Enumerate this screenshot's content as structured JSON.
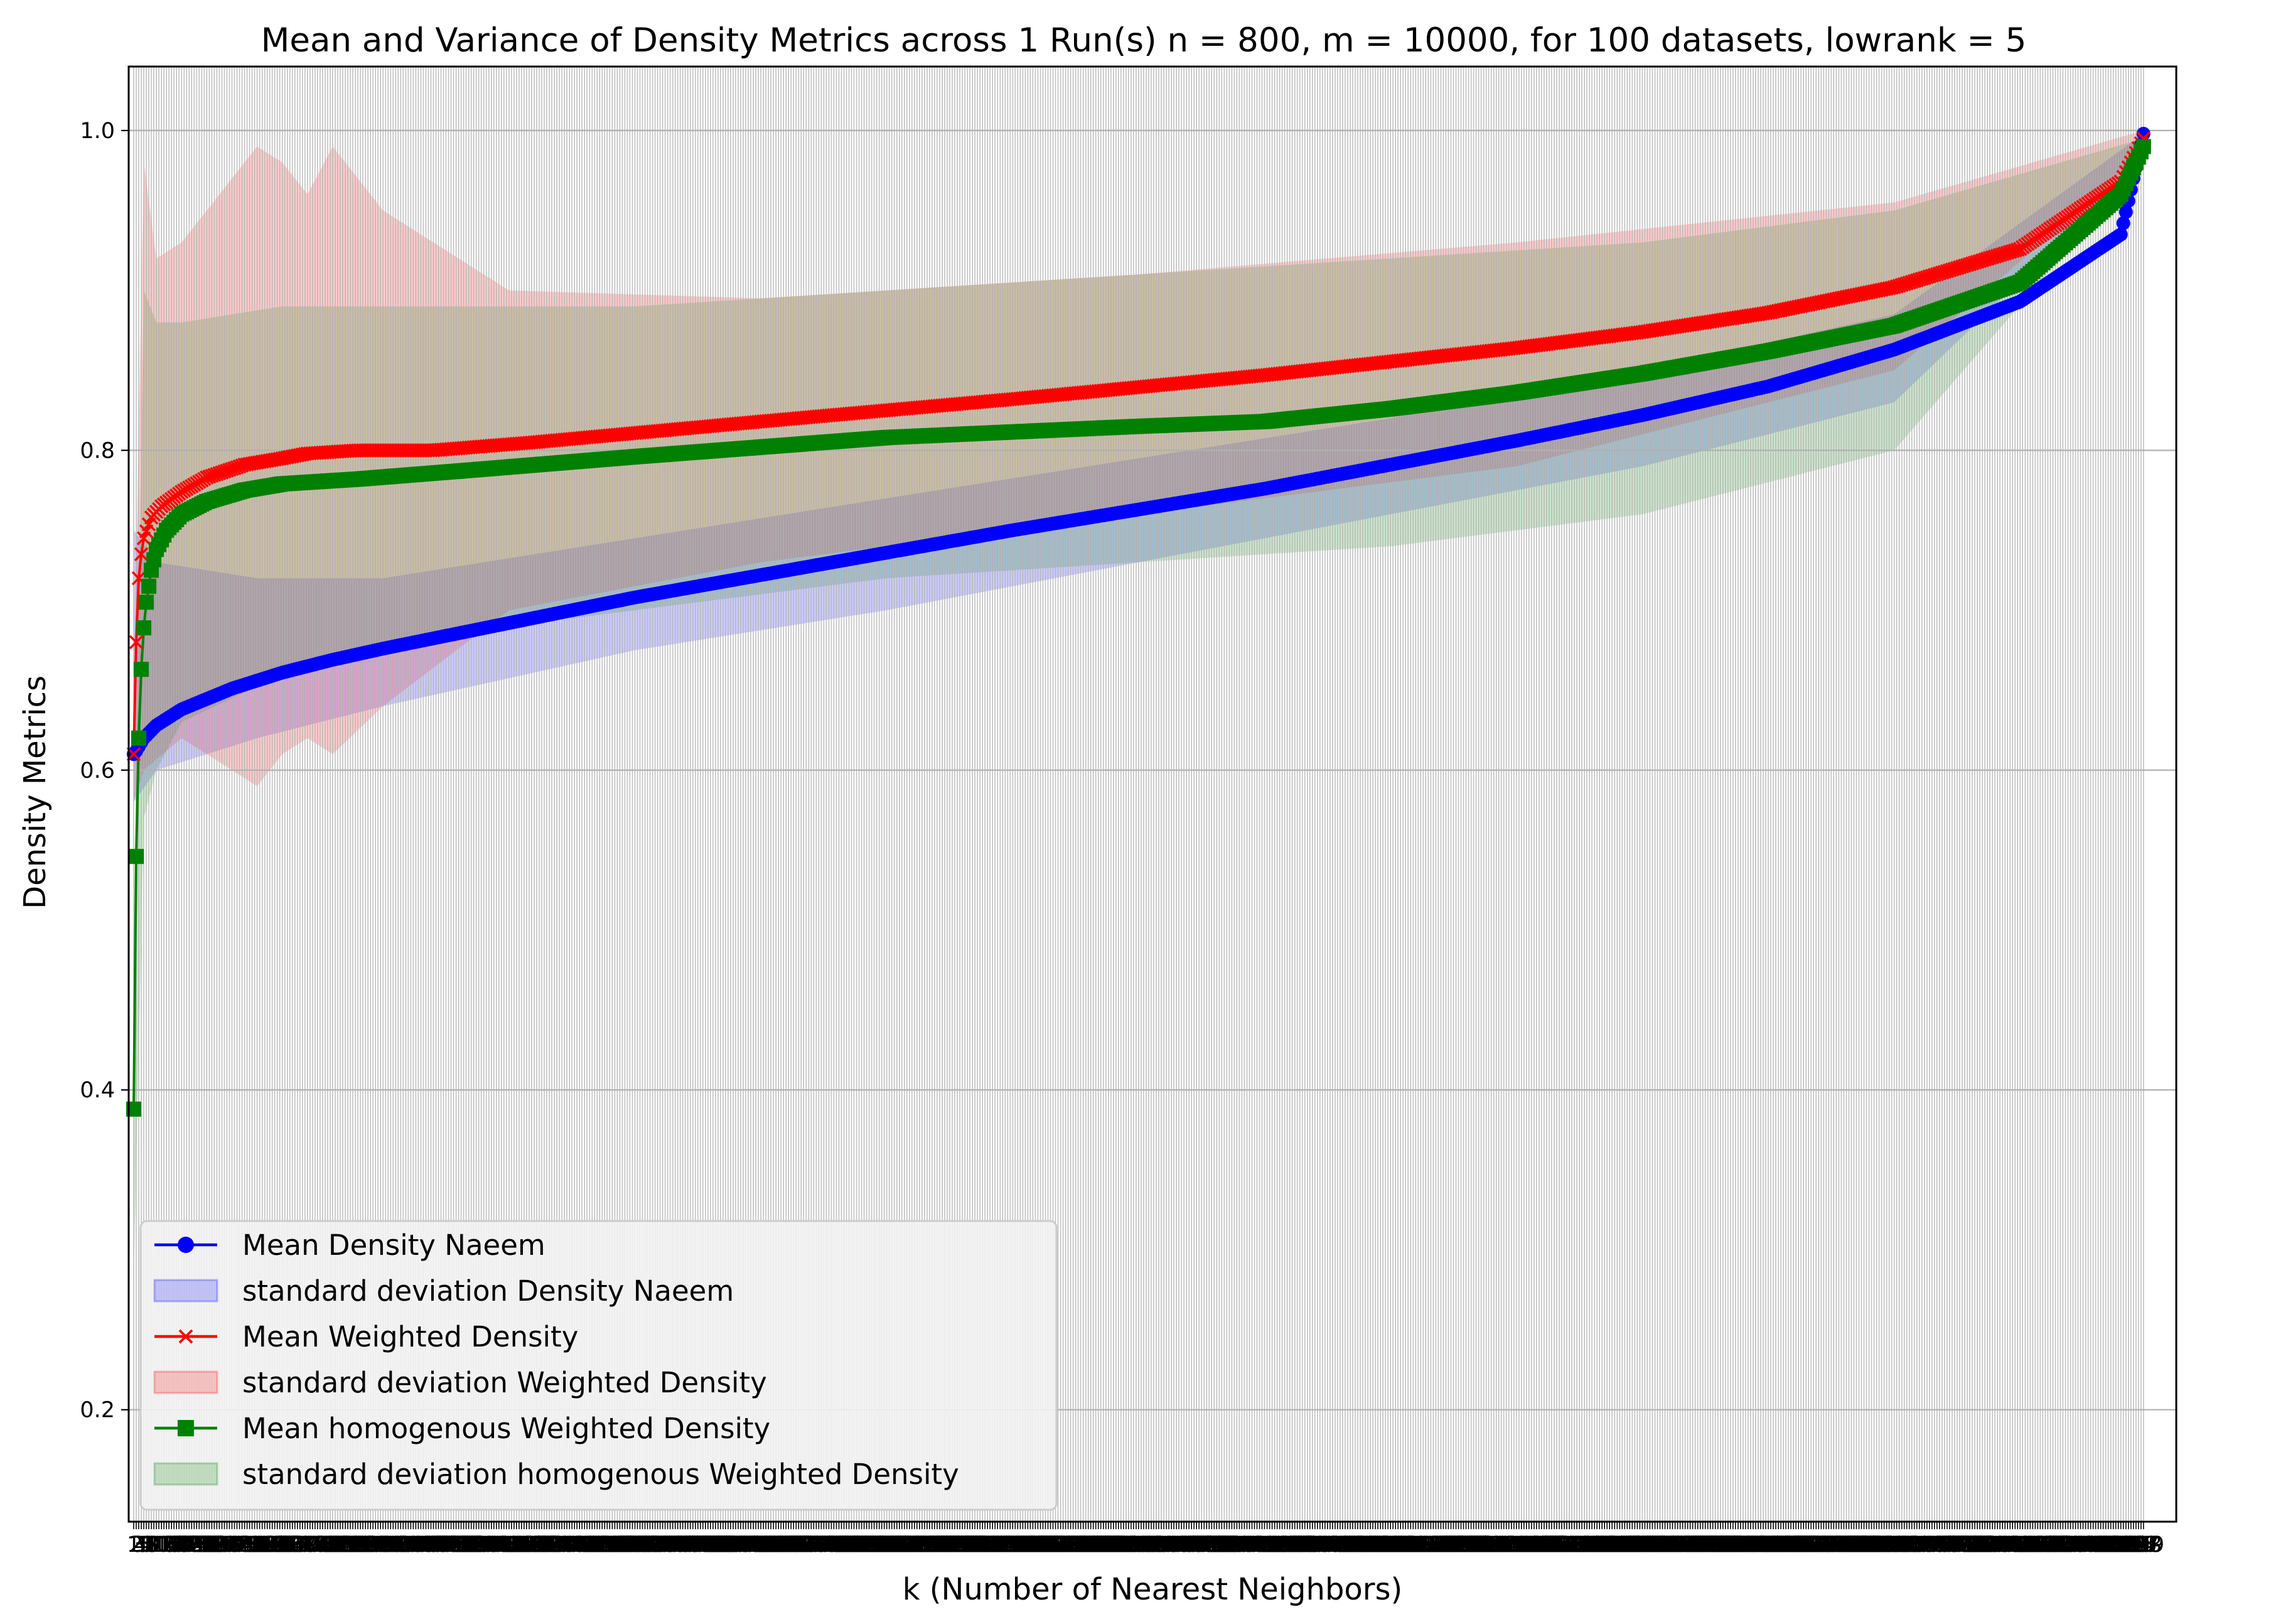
{
  "chart_data": {
    "type": "line",
    "title": "Mean and Variance of Density Metrics across 1 Run(s) n  = 800, m  = 10000, for 100 datasets, lowrank = 5",
    "xlabel": "k (Number of Nearest Neighbors)",
    "ylabel": "Density Metrics",
    "xlim": [
      -1,
      812
    ],
    "ylim": [
      0.13,
      1.04
    ],
    "x_range": [
      1,
      799
    ],
    "yticks": [
      "0.2",
      "0.4",
      "0.6",
      "0.8",
      "1.0"
    ],
    "grid": "horizontal",
    "legend_position": "lower-left",
    "series": [
      {
        "name": "Mean Density Naeem",
        "color": "#0000ff",
        "marker": "circle",
        "points": [
          [
            1,
            0.61
          ],
          [
            2,
            0.612
          ],
          [
            5,
            0.62
          ],
          [
            10,
            0.628
          ],
          [
            20,
            0.638
          ],
          [
            40,
            0.651
          ],
          [
            60,
            0.661
          ],
          [
            80,
            0.669
          ],
          [
            100,
            0.676
          ],
          [
            150,
            0.692
          ],
          [
            200,
            0.708
          ],
          [
            250,
            0.722
          ],
          [
            300,
            0.736
          ],
          [
            350,
            0.75
          ],
          [
            400,
            0.763
          ],
          [
            450,
            0.776
          ],
          [
            500,
            0.791
          ],
          [
            550,
            0.806
          ],
          [
            600,
            0.822
          ],
          [
            650,
            0.84
          ],
          [
            700,
            0.863
          ],
          [
            750,
            0.893
          ],
          [
            790,
            0.935
          ],
          [
            799,
            0.998
          ]
        ]
      },
      {
        "name": "Mean Weighted Density",
        "color": "#ff0000",
        "marker": "x",
        "points": [
          [
            1,
            0.61
          ],
          [
            2,
            0.68
          ],
          [
            3,
            0.72
          ],
          [
            4,
            0.735
          ],
          [
            5,
            0.745
          ],
          [
            8,
            0.758
          ],
          [
            12,
            0.765
          ],
          [
            20,
            0.774
          ],
          [
            30,
            0.783
          ],
          [
            45,
            0.791
          ],
          [
            60,
            0.795
          ],
          [
            70,
            0.798
          ],
          [
            90,
            0.8
          ],
          [
            120,
            0.8
          ],
          [
            160,
            0.805
          ],
          [
            250,
            0.818
          ],
          [
            350,
            0.832
          ],
          [
            450,
            0.847
          ],
          [
            550,
            0.864
          ],
          [
            600,
            0.874
          ],
          [
            650,
            0.886
          ],
          [
            700,
            0.902
          ],
          [
            750,
            0.926
          ],
          [
            790,
            0.968
          ],
          [
            799,
            0.995
          ]
        ]
      },
      {
        "name": "Mean homogenous Weighted Density",
        "color": "#008000",
        "marker": "square",
        "points": [
          [
            1,
            0.388
          ],
          [
            2,
            0.546
          ],
          [
            3,
            0.62
          ],
          [
            4,
            0.663
          ],
          [
            5,
            0.689
          ],
          [
            6,
            0.705
          ],
          [
            8,
            0.725
          ],
          [
            10,
            0.738
          ],
          [
            14,
            0.75
          ],
          [
            20,
            0.76
          ],
          [
            30,
            0.768
          ],
          [
            45,
            0.775
          ],
          [
            60,
            0.779
          ],
          [
            90,
            0.782
          ],
          [
            130,
            0.787
          ],
          [
            200,
            0.796
          ],
          [
            300,
            0.808
          ],
          [
            400,
            0.815
          ],
          [
            450,
            0.818
          ],
          [
            500,
            0.826
          ],
          [
            550,
            0.836
          ],
          [
            600,
            0.848
          ],
          [
            650,
            0.862
          ],
          [
            700,
            0.878
          ],
          [
            750,
            0.905
          ],
          [
            790,
            0.96
          ],
          [
            799,
            0.99
          ]
        ]
      }
    ],
    "bands": [
      {
        "name": "standard deviation Density Naeem",
        "color": "#0000ff",
        "upper": [
          [
            1,
            0.75
          ],
          [
            10,
            0.73
          ],
          [
            50,
            0.72
          ],
          [
            100,
            0.72
          ],
          [
            200,
            0.745
          ],
          [
            300,
            0.77
          ],
          [
            400,
            0.795
          ],
          [
            500,
            0.82
          ],
          [
            600,
            0.85
          ],
          [
            700,
            0.885
          ],
          [
            799,
            0.998
          ]
        ],
        "lower": [
          [
            1,
            0.58
          ],
          [
            10,
            0.6
          ],
          [
            50,
            0.62
          ],
          [
            100,
            0.64
          ],
          [
            200,
            0.675
          ],
          [
            300,
            0.7
          ],
          [
            400,
            0.73
          ],
          [
            500,
            0.76
          ],
          [
            600,
            0.79
          ],
          [
            700,
            0.83
          ],
          [
            799,
            0.98
          ]
        ]
      },
      {
        "name": "standard deviation Weighted Density",
        "color": "#ff0000",
        "upper": [
          [
            1,
            0.65
          ],
          [
            5,
            0.98
          ],
          [
            10,
            0.92
          ],
          [
            20,
            0.93
          ],
          [
            40,
            0.97
          ],
          [
            50,
            0.99
          ],
          [
            60,
            0.98
          ],
          [
            70,
            0.96
          ],
          [
            80,
            0.99
          ],
          [
            100,
            0.95
          ],
          [
            150,
            0.9
          ],
          [
            250,
            0.895
          ],
          [
            400,
            0.91
          ],
          [
            550,
            0.93
          ],
          [
            700,
            0.955
          ],
          [
            799,
            1.0
          ]
        ],
        "lower": [
          [
            1,
            0.58
          ],
          [
            5,
            0.6
          ],
          [
            20,
            0.62
          ],
          [
            40,
            0.6
          ],
          [
            50,
            0.59
          ],
          [
            60,
            0.61
          ],
          [
            70,
            0.62
          ],
          [
            80,
            0.61
          ],
          [
            100,
            0.64
          ],
          [
            150,
            0.7
          ],
          [
            250,
            0.73
          ],
          [
            400,
            0.76
          ],
          [
            550,
            0.79
          ],
          [
            700,
            0.85
          ],
          [
            799,
            0.985
          ]
        ]
      },
      {
        "name": "standard deviation homogenous Weighted Density",
        "color": "#008000",
        "upper": [
          [
            1,
            0.5
          ],
          [
            5,
            0.9
          ],
          [
            10,
            0.88
          ],
          [
            20,
            0.88
          ],
          [
            60,
            0.89
          ],
          [
            100,
            0.89
          ],
          [
            200,
            0.89
          ],
          [
            300,
            0.9
          ],
          [
            400,
            0.91
          ],
          [
            500,
            0.92
          ],
          [
            600,
            0.93
          ],
          [
            700,
            0.95
          ],
          [
            799,
            0.995
          ]
        ],
        "lower": [
          [
            1,
            0.28
          ],
          [
            5,
            0.57
          ],
          [
            10,
            0.6
          ],
          [
            20,
            0.63
          ],
          [
            60,
            0.66
          ],
          [
            100,
            0.68
          ],
          [
            200,
            0.7
          ],
          [
            300,
            0.72
          ],
          [
            400,
            0.73
          ],
          [
            500,
            0.74
          ],
          [
            600,
            0.76
          ],
          [
            700,
            0.8
          ],
          [
            799,
            0.98
          ]
        ]
      }
    ],
    "legend": [
      {
        "label": "Mean Density Naeem",
        "kind": "line",
        "color": "#0000ff",
        "marker": "circle"
      },
      {
        "label": "standard deviation Density Naeem",
        "kind": "patch",
        "color": "#0000ff"
      },
      {
        "label": "Mean Weighted Density",
        "kind": "line",
        "color": "#ff0000",
        "marker": "x"
      },
      {
        "label": "standard deviation Weighted Density",
        "kind": "patch",
        "color": "#ff0000"
      },
      {
        "label": "Mean homogenous Weighted Density",
        "kind": "line",
        "color": "#008000",
        "marker": "square"
      },
      {
        "label": "standard deviation homogenous Weighted Density",
        "kind": "patch",
        "color": "#008000"
      }
    ]
  }
}
